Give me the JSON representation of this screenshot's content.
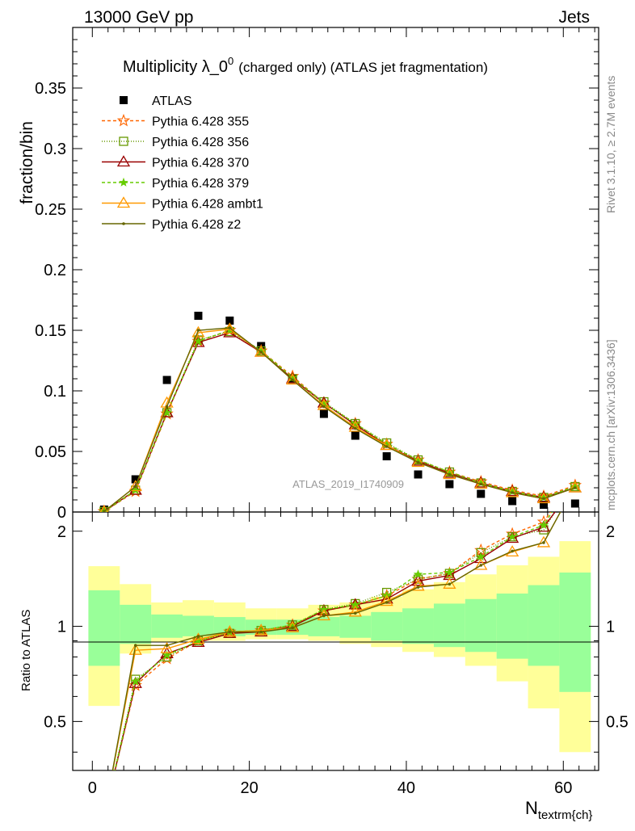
{
  "header": {
    "energy_label": "13000 GeV pp",
    "category_label": "Jets",
    "title_main": "Multiplicity λ_0",
    "title_sup": "0",
    "title_suffix": "(charged only) (ATLAS jet fragmentation)",
    "analysis_id": "ATLAS_2019_I1740909",
    "side_rivet": "Rivet 3.1.10, ≥ 2.7M events",
    "side_mcplots": "mcplots.cern.ch [arXiv:1306.3436]"
  },
  "chart_data": [
    {
      "type": "scatter",
      "panel": "main",
      "ylabel": "fraction/bin",
      "xlim": [
        -2.5,
        64.5
      ],
      "ylim": [
        0,
        0.4
      ],
      "y_ticks": [
        "0",
        "0.05",
        "0.1",
        "0.15",
        "0.2",
        "0.25",
        "0.3",
        "0.35"
      ],
      "y_tick_values": [
        0,
        0.05,
        0.1,
        0.15,
        0.2,
        0.25,
        0.3,
        0.35
      ],
      "x": [
        1.5,
        5.5,
        9.5,
        13.5,
        17.5,
        21.5,
        25.5,
        29.5,
        33.5,
        37.5,
        41.5,
        45.5,
        49.5,
        53.5,
        57.5,
        61.5
      ],
      "series": [
        {
          "name": "ATLAS",
          "color": "#000000",
          "marker": "square",
          "values": [
            0.002,
            0.027,
            0.109,
            0.162,
            0.158,
            0.137,
            0.11,
            0.081,
            0.063,
            0.046,
            0.031,
            0.023,
            0.015,
            0.009,
            0.006,
            0.007
          ]
        },
        {
          "name": "Pythia 6.428 355",
          "color": "#ff6600",
          "marker": "star",
          "dash": "4,3",
          "values": [
            0.0005,
            0.017,
            0.081,
            0.141,
            0.15,
            0.133,
            0.112,
            0.09,
            0.073,
            0.056,
            0.043,
            0.033,
            0.025,
            0.018,
            0.013,
            0.022
          ]
        },
        {
          "name": "Pythia 6.428 356",
          "color": "#669900",
          "marker": "open-square",
          "dash": "1,2",
          "values": [
            0.0005,
            0.018,
            0.082,
            0.142,
            0.149,
            0.133,
            0.11,
            0.091,
            0.073,
            0.057,
            0.043,
            0.033,
            0.024,
            0.017,
            0.012,
            0.021
          ]
        },
        {
          "name": "Pythia 6.428 370",
          "color": "#990000",
          "marker": "open-triangle",
          "dash": "",
          "values": [
            0.0005,
            0.018,
            0.082,
            0.14,
            0.148,
            0.132,
            0.11,
            0.09,
            0.072,
            0.055,
            0.042,
            0.032,
            0.024,
            0.017,
            0.012,
            0.02
          ]
        },
        {
          "name": "Pythia 6.428 379",
          "color": "#66cc00",
          "marker": "small-star",
          "dash": "4,3",
          "values": [
            0.0005,
            0.018,
            0.082,
            0.141,
            0.15,
            0.133,
            0.111,
            0.09,
            0.073,
            0.056,
            0.043,
            0.033,
            0.024,
            0.017,
            0.012,
            0.021
          ]
        },
        {
          "name": "Pythia 6.428 ambt1",
          "color": "#ff9900",
          "marker": "open-triangle",
          "dash": "",
          "values": [
            0.0005,
            0.021,
            0.09,
            0.148,
            0.151,
            0.132,
            0.109,
            0.088,
            0.07,
            0.055,
            0.041,
            0.031,
            0.023,
            0.016,
            0.011,
            0.02
          ]
        },
        {
          "name": "Pythia 6.428 z2",
          "color": "#666600",
          "marker": "dot",
          "dash": "",
          "values": [
            0.0005,
            0.021,
            0.087,
            0.15,
            0.152,
            0.132,
            0.109,
            0.087,
            0.069,
            0.054,
            0.041,
            0.031,
            0.023,
            0.016,
            0.011,
            0.02
          ]
        }
      ]
    },
    {
      "type": "line",
      "panel": "ratio",
      "ylabel": "Ratio to ATLAS",
      "xlabel": "N",
      "xlabel_sub": "textrm{ch}",
      "xlim": [
        -2.5,
        64.5
      ],
      "ylim": [
        0.35,
        2.3
      ],
      "log_y": true,
      "y_ticks": [
        "0.5",
        "1",
        "2"
      ],
      "y_tick_values": [
        0.5,
        1,
        2
      ],
      "x_ticks": [
        "0",
        "20",
        "40",
        "60"
      ],
      "x_tick_values": [
        0,
        20,
        40,
        60
      ],
      "bins": [
        [
          -0.5,
          3.5
        ],
        [
          3.5,
          7.5
        ],
        [
          7.5,
          11.5
        ],
        [
          11.5,
          15.5
        ],
        [
          15.5,
          19.5
        ],
        [
          19.5,
          23.5
        ],
        [
          23.5,
          27.5
        ],
        [
          27.5,
          31.5
        ],
        [
          31.5,
          35.5
        ],
        [
          35.5,
          39.5
        ],
        [
          39.5,
          43.5
        ],
        [
          43.5,
          47.5
        ],
        [
          47.5,
          51.5
        ],
        [
          51.5,
          55.5
        ],
        [
          55.5,
          59.5
        ],
        [
          59.5,
          63.5
        ]
      ],
      "band_stat": [
        [
          0.75,
          1.3
        ],
        [
          0.88,
          1.17
        ],
        [
          0.92,
          1.09
        ],
        [
          0.93,
          1.08
        ],
        [
          0.93,
          1.07
        ],
        [
          0.94,
          1.05
        ],
        [
          0.94,
          1.05
        ],
        [
          0.93,
          1.07
        ],
        [
          0.92,
          1.08
        ],
        [
          0.9,
          1.11
        ],
        [
          0.88,
          1.14
        ],
        [
          0.86,
          1.18
        ],
        [
          0.83,
          1.22
        ],
        [
          0.79,
          1.27
        ],
        [
          0.75,
          1.35
        ],
        [
          0.62,
          1.48
        ]
      ],
      "band_total": [
        [
          0.56,
          1.55
        ],
        [
          0.82,
          1.36
        ],
        [
          0.89,
          1.19
        ],
        [
          0.9,
          1.21
        ],
        [
          0.9,
          1.19
        ],
        [
          0.91,
          1.14
        ],
        [
          0.91,
          1.14
        ],
        [
          0.9,
          1.17
        ],
        [
          0.88,
          1.19
        ],
        [
          0.86,
          1.24
        ],
        [
          0.83,
          1.31
        ],
        [
          0.8,
          1.38
        ],
        [
          0.75,
          1.46
        ],
        [
          0.67,
          1.56
        ],
        [
          0.55,
          1.66
        ],
        [
          0.4,
          1.86
        ]
      ],
      "x": [
        1.5,
        5.5,
        9.5,
        13.5,
        17.5,
        21.5,
        25.5,
        29.5,
        33.5,
        37.5,
        41.5,
        45.5,
        49.5,
        53.5,
        57.5,
        61.5
      ],
      "series": [
        {
          "name": "Pythia 6.428 355",
          "color": "#ff6600",
          "marker": "star",
          "dash": "4,3",
          "values": [
            0.25,
            0.65,
            0.79,
            0.9,
            0.96,
            0.97,
            1.01,
            1.12,
            1.17,
            1.25,
            1.41,
            1.47,
            1.74,
            1.96,
            2.14,
            3.0
          ]
        },
        {
          "name": "Pythia 6.428 356",
          "color": "#669900",
          "marker": "open-square",
          "dash": "1,2",
          "values": [
            0.25,
            0.68,
            0.8,
            0.9,
            0.95,
            0.97,
            1.01,
            1.13,
            1.18,
            1.28,
            1.41,
            1.47,
            1.71,
            1.92,
            2.02,
            2.9
          ]
        },
        {
          "name": "Pythia 6.428 370",
          "color": "#990000",
          "marker": "open-triangle",
          "dash": "",
          "values": [
            0.25,
            0.66,
            0.82,
            0.89,
            0.95,
            0.96,
            1.0,
            1.12,
            1.17,
            1.22,
            1.39,
            1.45,
            1.64,
            1.9,
            2.06,
            2.8
          ]
        },
        {
          "name": "Pythia 6.428 379",
          "color": "#66cc00",
          "marker": "small-star",
          "dash": "4,3",
          "values": [
            0.25,
            0.67,
            0.81,
            0.9,
            0.96,
            0.97,
            1.01,
            1.13,
            1.17,
            1.25,
            1.46,
            1.48,
            1.66,
            1.92,
            2.09,
            3.0
          ]
        },
        {
          "name": "Pythia 6.428 ambt1",
          "color": "#ff9900",
          "marker": "open-triangle",
          "dash": "",
          "values": [
            0.25,
            0.84,
            0.85,
            0.91,
            0.96,
            0.97,
            0.99,
            1.08,
            1.11,
            1.2,
            1.34,
            1.36,
            1.56,
            1.72,
            1.84,
            2.8
          ]
        },
        {
          "name": "Pythia 6.428 z2",
          "color": "#666600",
          "marker": "dot",
          "dash": "",
          "values": [
            0.25,
            0.87,
            0.87,
            0.93,
            0.96,
            0.96,
            0.99,
            1.08,
            1.1,
            1.19,
            1.33,
            1.36,
            1.56,
            1.73,
            1.84,
            2.8
          ]
        }
      ]
    }
  ]
}
